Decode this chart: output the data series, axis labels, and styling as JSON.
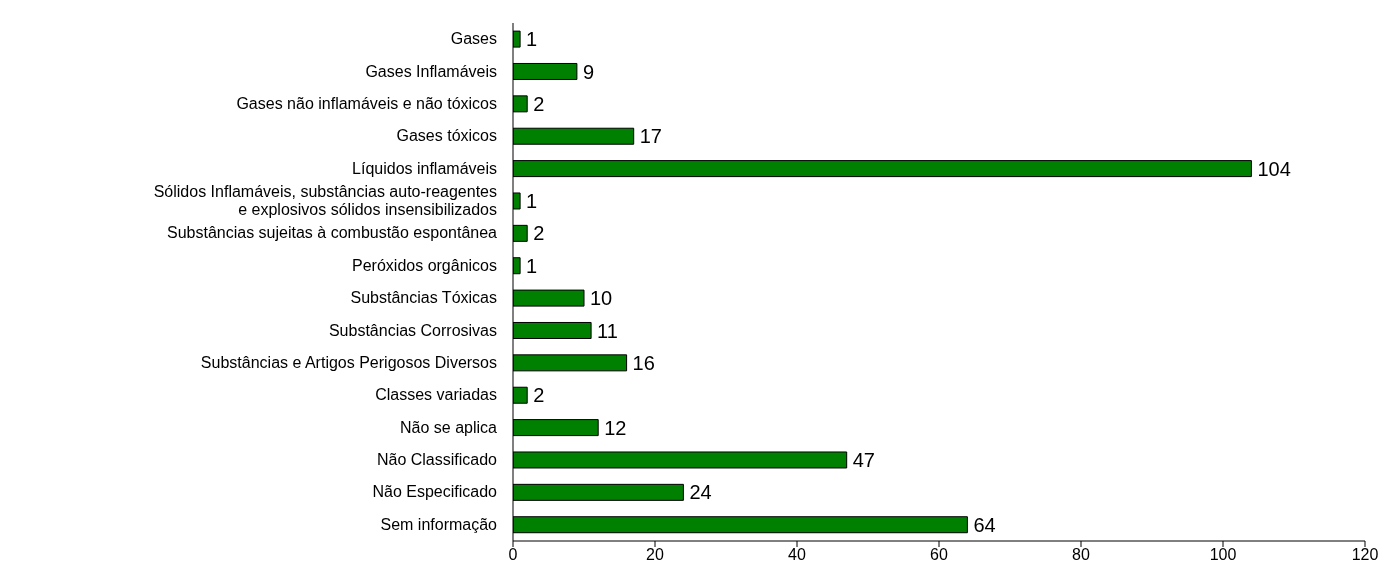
{
  "chart_data": {
    "type": "bar",
    "orientation": "horizontal",
    "categories": [
      "Gases",
      "Gases Inflamáveis",
      "Gases não inflamáveis e não tóxicos",
      "Gases tóxicos",
      "Líquidos inflamáveis",
      "Sólidos Inflamáveis, substâncias auto-reagentes e explosivos sólidos insensibilizados",
      "Substâncias sujeitas à combustão espontânea",
      "Peróxidos orgânicos",
      "Substâncias Tóxicas",
      "Substâncias Corrosivas",
      "Substâncias e Artigos Perigosos Diversos",
      "Classes variadas",
      "Não se aplica",
      "Não Classificado",
      "Não Especificado",
      "Sem informação"
    ],
    "values": [
      1,
      9,
      2,
      17,
      104,
      1,
      2,
      1,
      10,
      11,
      16,
      2,
      12,
      47,
      24,
      64
    ],
    "color": "#008000",
    "xlim": [
      0,
      120
    ],
    "xticks": [
      0,
      20,
      40,
      60,
      80,
      100,
      120
    ],
    "grid": false,
    "data_labels": true
  }
}
